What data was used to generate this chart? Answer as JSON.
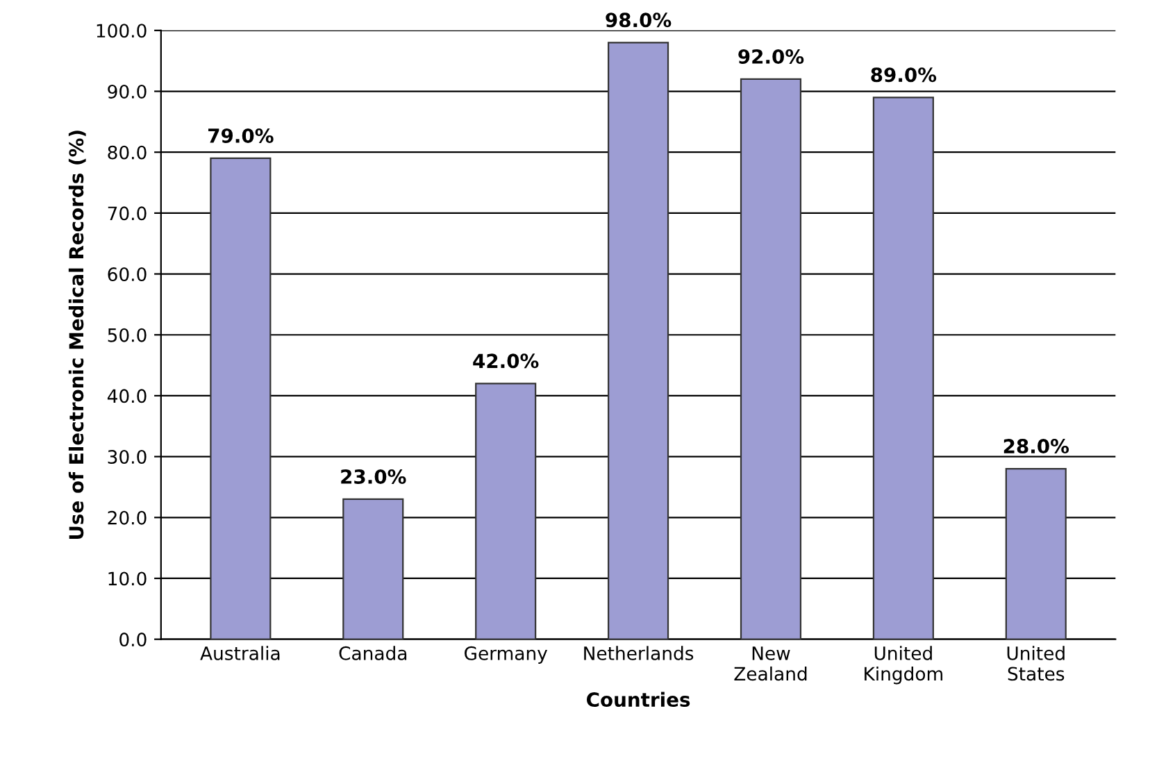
{
  "chart_data": {
    "type": "bar",
    "xlabel": "Countries",
    "ylabel": "Use of Electronic Medical Records (%)",
    "categories": [
      "Australia",
      "Canada",
      "Germany",
      "Netherlands",
      "New\nZealand",
      "United\nKingdom",
      "United\nStates"
    ],
    "values": [
      79,
      23,
      42,
      98,
      92,
      89,
      28
    ],
    "value_labels": [
      "79.0%",
      "23.0%",
      "42.0%",
      "98.0%",
      "92.0%",
      "89.0%",
      "28.0%"
    ],
    "color": "#9d9dd3",
    "ylim": [
      0,
      100
    ],
    "yticks": [
      {
        "value": 0,
        "label": "0.0"
      },
      {
        "value": 10,
        "label": "10.0"
      },
      {
        "value": 20,
        "label": "20.0"
      },
      {
        "value": 30,
        "label": "30.0"
      },
      {
        "value": 40,
        "label": "40.0"
      },
      {
        "value": 50,
        "label": "50.0"
      },
      {
        "value": 60,
        "label": "60.0"
      },
      {
        "value": 70,
        "label": "70.0"
      },
      {
        "value": 80,
        "label": "80.0"
      },
      {
        "value": 90,
        "label": "90.0"
      },
      {
        "value": 100,
        "label": "100.0"
      }
    ],
    "grid": "y"
  }
}
